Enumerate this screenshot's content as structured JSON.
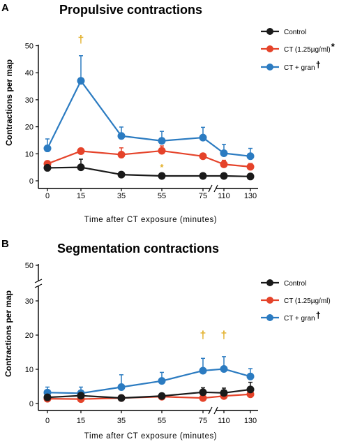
{
  "colors": {
    "control": "#1a1a1a",
    "ct": "#e5432a",
    "gran": "#2b7bc1",
    "marker": "#e3b02a"
  },
  "chart_data": [
    {
      "panel": "A",
      "type": "line",
      "title": "Propulsive contractions",
      "xlabel": "Time after CT exposure (minutes)",
      "ylabel": "Contractions per map",
      "x": [
        0,
        15,
        35,
        55,
        75,
        110,
        130
      ],
      "ylim": [
        0,
        50
      ],
      "yticks": [
        0,
        10,
        20,
        30,
        40,
        50
      ],
      "axis_break": "between 75 and 110",
      "series": [
        {
          "name": "Control",
          "key": "control",
          "values": [
            4.8,
            5,
            2.3,
            1.8,
            1.8,
            1.8,
            1.6
          ],
          "errors": [
            0,
            3,
            0,
            0,
            0,
            0,
            0
          ]
        },
        {
          "name": "CT (1.25µg/ml)",
          "mark": "*",
          "key": "ct",
          "values": [
            6.3,
            11,
            9.7,
            11.1,
            9.1,
            6.1,
            5.2
          ],
          "errors": [
            0,
            0,
            2.5,
            1.8,
            0,
            1.5,
            1.2
          ]
        },
        {
          "name": "CT + gran",
          "mark": "†",
          "key": "gran",
          "values": [
            12,
            37,
            16.6,
            14.8,
            16,
            10.2,
            9.1
          ],
          "errors": [
            3.5,
            9.3,
            3.3,
            3.5,
            3.8,
            3.3,
            2.9
          ]
        }
      ],
      "annotations": [
        {
          "x": 15,
          "y": 51,
          "text": "†"
        },
        {
          "x": 55,
          "y": 6.5,
          "text": "*"
        }
      ]
    },
    {
      "panel": "B",
      "type": "line",
      "title": "Segmentation contractions",
      "xlabel": "Time after CT exposure (minutes)",
      "ylabel": "Contractions per map",
      "x": [
        0,
        15,
        35,
        55,
        75,
        110,
        130
      ],
      "ylim": [
        0,
        50
      ],
      "yticks": [
        0,
        10,
        20,
        30,
        50
      ],
      "axis_break": "y axis between 30 and 50; x axis between 75 and 110",
      "series": [
        {
          "name": "Control",
          "key": "control",
          "values": [
            1.8,
            2.3,
            1.6,
            2.2,
            3.3,
            3.1,
            4.1
          ],
          "errors": [
            0,
            0,
            0,
            0,
            1.3,
            1.4,
            2.1
          ]
        },
        {
          "name": "CT (1.25µg/ml)",
          "key": "ct",
          "values": [
            1.4,
            1.3,
            1.6,
            2.0,
            1.6,
            2.2,
            2.7
          ],
          "errors": [
            0,
            0,
            0,
            0,
            0,
            0,
            0
          ]
        },
        {
          "name": "CT + gran",
          "mark": "†",
          "key": "gran",
          "values": [
            3.2,
            3,
            4.8,
            6.6,
            9.6,
            10.1,
            7.9
          ],
          "errors": [
            1.6,
            1.8,
            3.6,
            2.5,
            3.6,
            3.6,
            2.3
          ]
        }
      ],
      "annotations": [
        {
          "x": 75,
          "y": 19,
          "text": "†"
        },
        {
          "x": 110,
          "y": 19,
          "text": "†"
        }
      ]
    }
  ]
}
